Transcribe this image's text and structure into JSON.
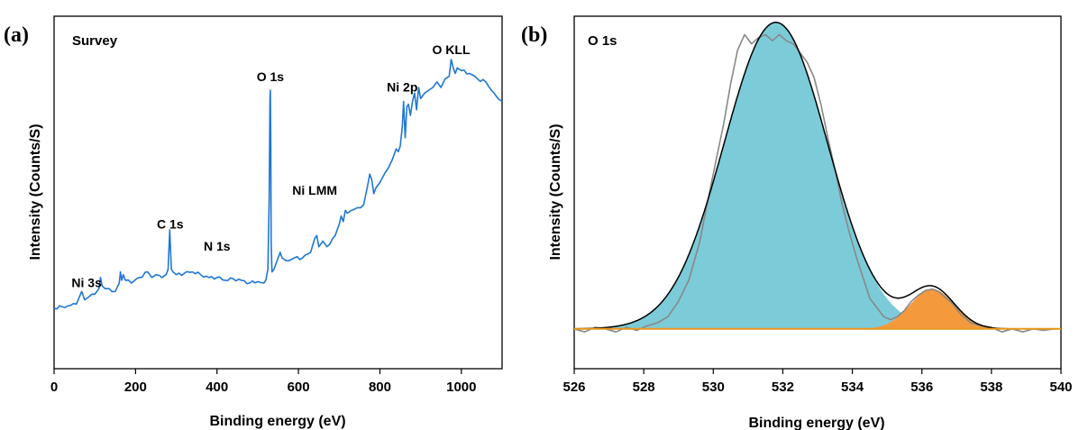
{
  "chart_data": [
    {
      "panel_label": "(a)",
      "type": "line",
      "title": "Survey",
      "xlabel": "Binding energy (eV)",
      "ylabel": "Intensity (Counts/S)",
      "xlim": [
        0,
        1100
      ],
      "ylim": [
        0,
        100
      ],
      "xticks": [
        0,
        200,
        400,
        600,
        800,
        1000
      ],
      "yticks_shown": false,
      "grid": false,
      "colors": {
        "line": "#1f77d4"
      },
      "annotations": [
        {
          "text": "Ni 3s",
          "x": 80,
          "y": 16
        },
        {
          "text": "C 1s",
          "x": 285,
          "y": 37
        },
        {
          "text": "N 1s",
          "x": 400,
          "y": 29
        },
        {
          "text": "O 1s",
          "x": 531,
          "y": 89
        },
        {
          "text": "Ni LMM",
          "x": 640,
          "y": 49
        },
        {
          "text": "Ni 2p",
          "x": 855,
          "y": 86
        },
        {
          "text": "O KLL",
          "x": 975,
          "y": 100
        }
      ],
      "series": [
        {
          "x": [
            0,
            20,
            40,
            55,
            62,
            68,
            75,
            85,
            100,
            110,
            114,
            118,
            125,
            135,
            150,
            160,
            163,
            166,
            170,
            175,
            190,
            210,
            230,
            240,
            250,
            265,
            275,
            280,
            284,
            288,
            292,
            300,
            320,
            340,
            360,
            380,
            400,
            420,
            440,
            460,
            480,
            500,
            515,
            520,
            525,
            528,
            530,
            531,
            532,
            533,
            535,
            540,
            550,
            555,
            560,
            570,
            590,
            610,
            630,
            640,
            645,
            650,
            660,
            670,
            690,
            700,
            705,
            710,
            715,
            720,
            730,
            745,
            760,
            770,
            775,
            780,
            785,
            790,
            800,
            820,
            830,
            840,
            845,
            850,
            855,
            858,
            862,
            866,
            870,
            875,
            880,
            885,
            890,
            895,
            900,
            910,
            920,
            930,
            940,
            950,
            960,
            970,
            975,
            980,
            985,
            990,
            1000,
            1020,
            1040,
            1060,
            1080,
            1090,
            1100
          ],
          "y": [
            11,
            11.5,
            12,
            12.5,
            15,
            17,
            14,
            15,
            16,
            18,
            22,
            19,
            18,
            18,
            17,
            20,
            24,
            21,
            23,
            21,
            20,
            22,
            24,
            22,
            23,
            22,
            23,
            25,
            39,
            25,
            24,
            23,
            23.5,
            24,
            23,
            22,
            22,
            21,
            21.5,
            21,
            20,
            20.5,
            20,
            21,
            25,
            50,
            86,
            89,
            70,
            35,
            24,
            25,
            29,
            31,
            29,
            28,
            29,
            29,
            31,
            36,
            37,
            33,
            35,
            33,
            37,
            41,
            44,
            42,
            46,
            45,
            46,
            47,
            48,
            55,
            59,
            57,
            52,
            54,
            56,
            61,
            64,
            68,
            67,
            69,
            76,
            85,
            72,
            83,
            84,
            80,
            85,
            88,
            82,
            90,
            86,
            88,
            89,
            90,
            92,
            90,
            93,
            94,
            100,
            97,
            95,
            97,
            96,
            95,
            93,
            92,
            88,
            86,
            85
          ]
        }
      ]
    },
    {
      "panel_label": "(b)",
      "type": "line",
      "title": "O 1s",
      "xlabel": "Binding energy (eV)",
      "ylabel": "Intensity (Counts/S)",
      "xlim": [
        526,
        540
      ],
      "ylim": [
        -0.13,
        1.02
      ],
      "xticks": [
        526,
        528,
        530,
        532,
        534,
        536,
        538,
        540
      ],
      "yticks_shown": false,
      "grid": false,
      "colors": {
        "envelope": "#000000",
        "raw": "#888888",
        "peak1_fill": "#7ccbd8",
        "peak2_fill": "#f59a3c",
        "baseline": "#e8961e"
      },
      "components": [
        {
          "center": 531.8,
          "fwhm": 3.5,
          "height": 1.0,
          "color": "#7ccbd8"
        },
        {
          "center": 536.3,
          "fwhm": 1.5,
          "height": 0.13,
          "color": "#f59a3c"
        }
      ],
      "series": [
        {
          "role": "raw",
          "x": [
            526.0,
            526.3,
            526.6,
            526.9,
            527.2,
            527.5,
            527.8,
            528.1,
            528.4,
            528.7,
            529.0,
            529.3,
            529.6,
            529.9,
            530.1,
            530.3,
            530.5,
            530.7,
            530.9,
            531.1,
            531.3,
            531.5,
            531.7,
            531.9,
            532.1,
            532.3,
            532.5,
            532.7,
            532.9,
            533.1,
            533.3,
            533.5,
            533.7,
            533.9,
            534.1,
            534.3,
            534.5,
            534.7,
            534.9,
            535.1,
            535.3,
            535.5,
            535.7,
            535.9,
            536.1,
            536.3,
            536.5,
            536.7,
            536.9,
            537.1,
            537.4,
            537.7,
            538.0,
            538.3,
            538.6,
            538.9,
            539.2,
            539.5,
            539.8,
            540.0
          ],
          "y": [
            0.0,
            -0.01,
            0.005,
            0.0,
            -0.01,
            0.005,
            -0.005,
            0.01,
            0.02,
            0.04,
            0.09,
            0.16,
            0.28,
            0.45,
            0.56,
            0.67,
            0.8,
            0.91,
            0.96,
            0.93,
            0.95,
            0.96,
            0.94,
            0.96,
            0.94,
            0.93,
            0.9,
            0.87,
            0.82,
            0.73,
            0.62,
            0.52,
            0.41,
            0.32,
            0.24,
            0.17,
            0.1,
            0.07,
            0.04,
            0.03,
            0.04,
            0.06,
            0.09,
            0.11,
            0.125,
            0.13,
            0.12,
            0.1,
            0.08,
            0.05,
            0.02,
            0.01,
            0.005,
            -0.01,
            0.0,
            -0.01,
            0.0,
            -0.005,
            0.0,
            0.0
          ]
        }
      ]
    }
  ]
}
